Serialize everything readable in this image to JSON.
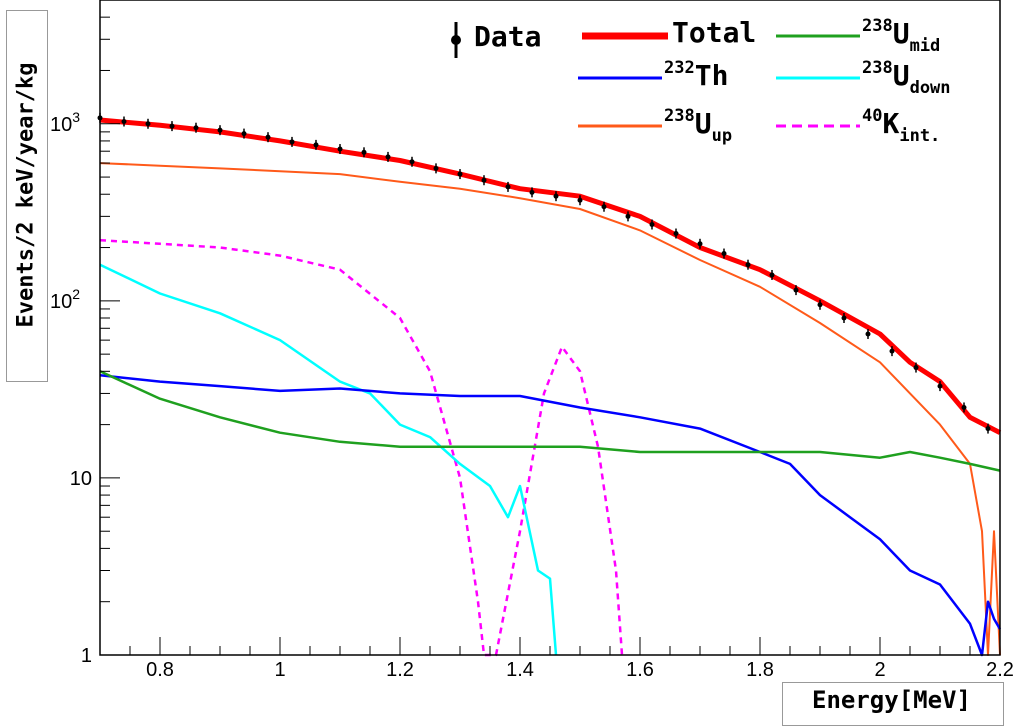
{
  "chart_data": {
    "type": "line",
    "title": "",
    "xlabel": "Energy[MeV]",
    "ylabel": "Events/2 keV/year/kg",
    "xlim": [
      0.7,
      2.2
    ],
    "ylim": [
      1,
      5000
    ],
    "yscale": "log",
    "grid": false,
    "legend_position": "top-right",
    "x_ticks": [
      "0.8",
      "1",
      "1.2",
      "1.4",
      "1.6",
      "1.8",
      "2",
      "2.2"
    ],
    "y_ticks": [
      {
        "label": "1",
        "value": 1
      },
      {
        "label": "10",
        "value": 10
      },
      {
        "label": "10",
        "sup": "2",
        "value": 100
      },
      {
        "label": "10",
        "sup": "3",
        "value": 1000
      }
    ],
    "legend": [
      {
        "id": "data",
        "iso": "",
        "name": "Data",
        "sub": ""
      },
      {
        "id": "total",
        "iso": "",
        "name": "Total",
        "sub": ""
      },
      {
        "id": "u238mid",
        "iso": "238",
        "name": "U",
        "sub": "mid"
      },
      {
        "id": "th232",
        "iso": "232",
        "name": "Th",
        "sub": ""
      },
      {
        "id": "u238down",
        "iso": "238",
        "name": "U",
        "sub": "down"
      },
      {
        "id": "u238up",
        "iso": "238",
        "name": "U",
        "sub": "up"
      },
      {
        "id": "k40",
        "iso": "40",
        "name": "K",
        "sub": "int."
      }
    ],
    "series": [
      {
        "id": "total",
        "color": "#ff0000",
        "width": 5,
        "dash": "",
        "x": [
          0.7,
          0.8,
          0.9,
          1.0,
          1.1,
          1.2,
          1.3,
          1.4,
          1.5,
          1.6,
          1.7,
          1.8,
          1.9,
          2.0,
          2.05,
          2.1,
          2.15,
          2.2
        ],
        "y": [
          1050,
          980,
          900,
          800,
          700,
          620,
          520,
          430,
          390,
          300,
          200,
          150,
          100,
          65,
          45,
          35,
          22,
          18
        ]
      },
      {
        "id": "u238up",
        "color": "#ff5a1a",
        "width": 2,
        "dash": "",
        "x": [
          0.7,
          0.8,
          0.9,
          1.0,
          1.1,
          1.2,
          1.3,
          1.4,
          1.5,
          1.6,
          1.7,
          1.8,
          1.9,
          2.0,
          2.05,
          2.1,
          2.15,
          2.17,
          2.18,
          2.19,
          2.2
        ],
        "y": [
          600,
          580,
          560,
          540,
          520,
          470,
          430,
          380,
          330,
          250,
          170,
          120,
          75,
          45,
          30,
          20,
          12,
          5,
          1,
          5,
          1
        ]
      },
      {
        "id": "k40",
        "color": "#ff00ff",
        "width": 2.5,
        "dash": "6,5",
        "x": [
          0.7,
          0.8,
          0.9,
          1.0,
          1.1,
          1.2,
          1.25,
          1.3,
          1.33,
          1.34,
          1.36,
          1.4,
          1.44,
          1.47,
          1.5,
          1.53,
          1.56,
          1.57
        ],
        "y": [
          220,
          210,
          200,
          180,
          150,
          80,
          40,
          10,
          2,
          1,
          1,
          5,
          30,
          55,
          40,
          15,
          3,
          1
        ]
      },
      {
        "id": "u238down",
        "color": "#00ffff",
        "width": 2.5,
        "dash": "",
        "x": [
          0.7,
          0.8,
          0.9,
          1.0,
          1.1,
          1.15,
          1.2,
          1.25,
          1.3,
          1.35,
          1.38,
          1.4,
          1.43,
          1.45,
          1.46
        ],
        "y": [
          160,
          110,
          85,
          60,
          35,
          30,
          20,
          17,
          12,
          9,
          6,
          9,
          3,
          2.7,
          1
        ]
      },
      {
        "id": "th232",
        "color": "#0000ff",
        "width": 2.5,
        "dash": "",
        "x": [
          0.7,
          0.8,
          0.9,
          1.0,
          1.1,
          1.2,
          1.3,
          1.4,
          1.5,
          1.6,
          1.7,
          1.8,
          1.85,
          1.9,
          1.95,
          2.0,
          2.05,
          2.1,
          2.15,
          2.17,
          2.18,
          2.19,
          2.2
        ],
        "y": [
          38,
          35,
          33,
          31,
          32,
          30,
          29,
          29,
          25,
          22,
          19,
          14,
          12,
          8,
          6,
          4.5,
          3,
          2.5,
          1.5,
          1,
          2,
          1.6,
          1.4
        ]
      },
      {
        "id": "u238mid",
        "color": "#1fa01f",
        "width": 2.5,
        "dash": "",
        "x": [
          0.7,
          0.8,
          0.9,
          1.0,
          1.1,
          1.2,
          1.3,
          1.4,
          1.5,
          1.6,
          1.7,
          1.8,
          1.9,
          2.0,
          2.05,
          2.1,
          2.15,
          2.2
        ],
        "y": [
          40,
          28,
          22,
          18,
          16,
          15,
          15,
          15,
          15,
          14,
          14,
          14,
          14,
          13,
          14,
          13,
          12,
          11
        ]
      }
    ],
    "data_points": {
      "color": "#000000",
      "x": [
        0.7,
        0.74,
        0.78,
        0.82,
        0.86,
        0.9,
        0.94,
        0.98,
        1.02,
        1.06,
        1.1,
        1.14,
        1.18,
        1.22,
        1.26,
        1.3,
        1.34,
        1.38,
        1.42,
        1.46,
        1.5,
        1.54,
        1.58,
        1.62,
        1.66,
        1.7,
        1.74,
        1.78,
        1.82,
        1.86,
        1.9,
        1.94,
        1.98,
        2.02,
        2.06,
        2.1,
        2.14,
        2.18
      ],
      "y": [
        1080,
        1030,
        1000,
        970,
        950,
        920,
        880,
        840,
        790,
        760,
        720,
        690,
        650,
        610,
        560,
        520,
        480,
        440,
        410,
        390,
        370,
        340,
        300,
        270,
        240,
        210,
        185,
        160,
        140,
        115,
        95,
        80,
        65,
        52,
        42,
        33,
        25,
        19
      ]
    }
  }
}
